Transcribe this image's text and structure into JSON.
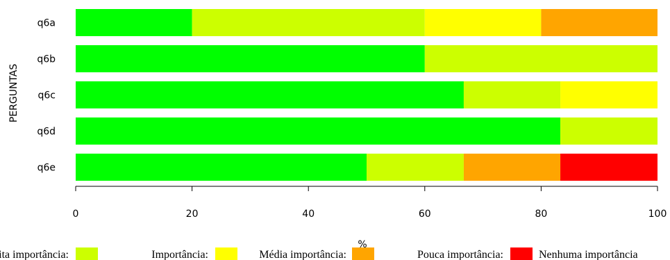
{
  "chart_data": {
    "type": "bar",
    "orientation": "horizontal",
    "stacked": true,
    "categories": [
      "q6a",
      "q6b",
      "q6c",
      "q6d",
      "q6e"
    ],
    "series": [
      {
        "name": "Muita importância",
        "color": "#00ff00",
        "values": [
          20,
          60,
          66.7,
          83.3,
          50
        ]
      },
      {
        "name": "Importância",
        "color": "#ccff00",
        "values": [
          40,
          40,
          16.6,
          16.7,
          16.7
        ]
      },
      {
        "name": "Média importância",
        "color": "#ffff00",
        "values": [
          20,
          0,
          16.7,
          0,
          0
        ]
      },
      {
        "name": "Pouca importância",
        "color": "#ffa500",
        "values": [
          20,
          0,
          0,
          0,
          16.6
        ]
      },
      {
        "name": "Nenhuma importância",
        "color": "#ff0000",
        "values": [
          0,
          0,
          0,
          0,
          16.7
        ]
      }
    ],
    "xlabel": "%",
    "ylabel": "PERGUNTAS",
    "xlim": [
      0,
      100
    ],
    "xticks": [
      "0",
      "20",
      "40",
      "60",
      "80",
      "100"
    ],
    "legend_position": "bottom",
    "legend_labels": [
      "Muita importância:",
      "Importância:",
      "Média importância:",
      "Pouca importância:",
      "Nenhuma importância"
    ],
    "grid": false
  }
}
